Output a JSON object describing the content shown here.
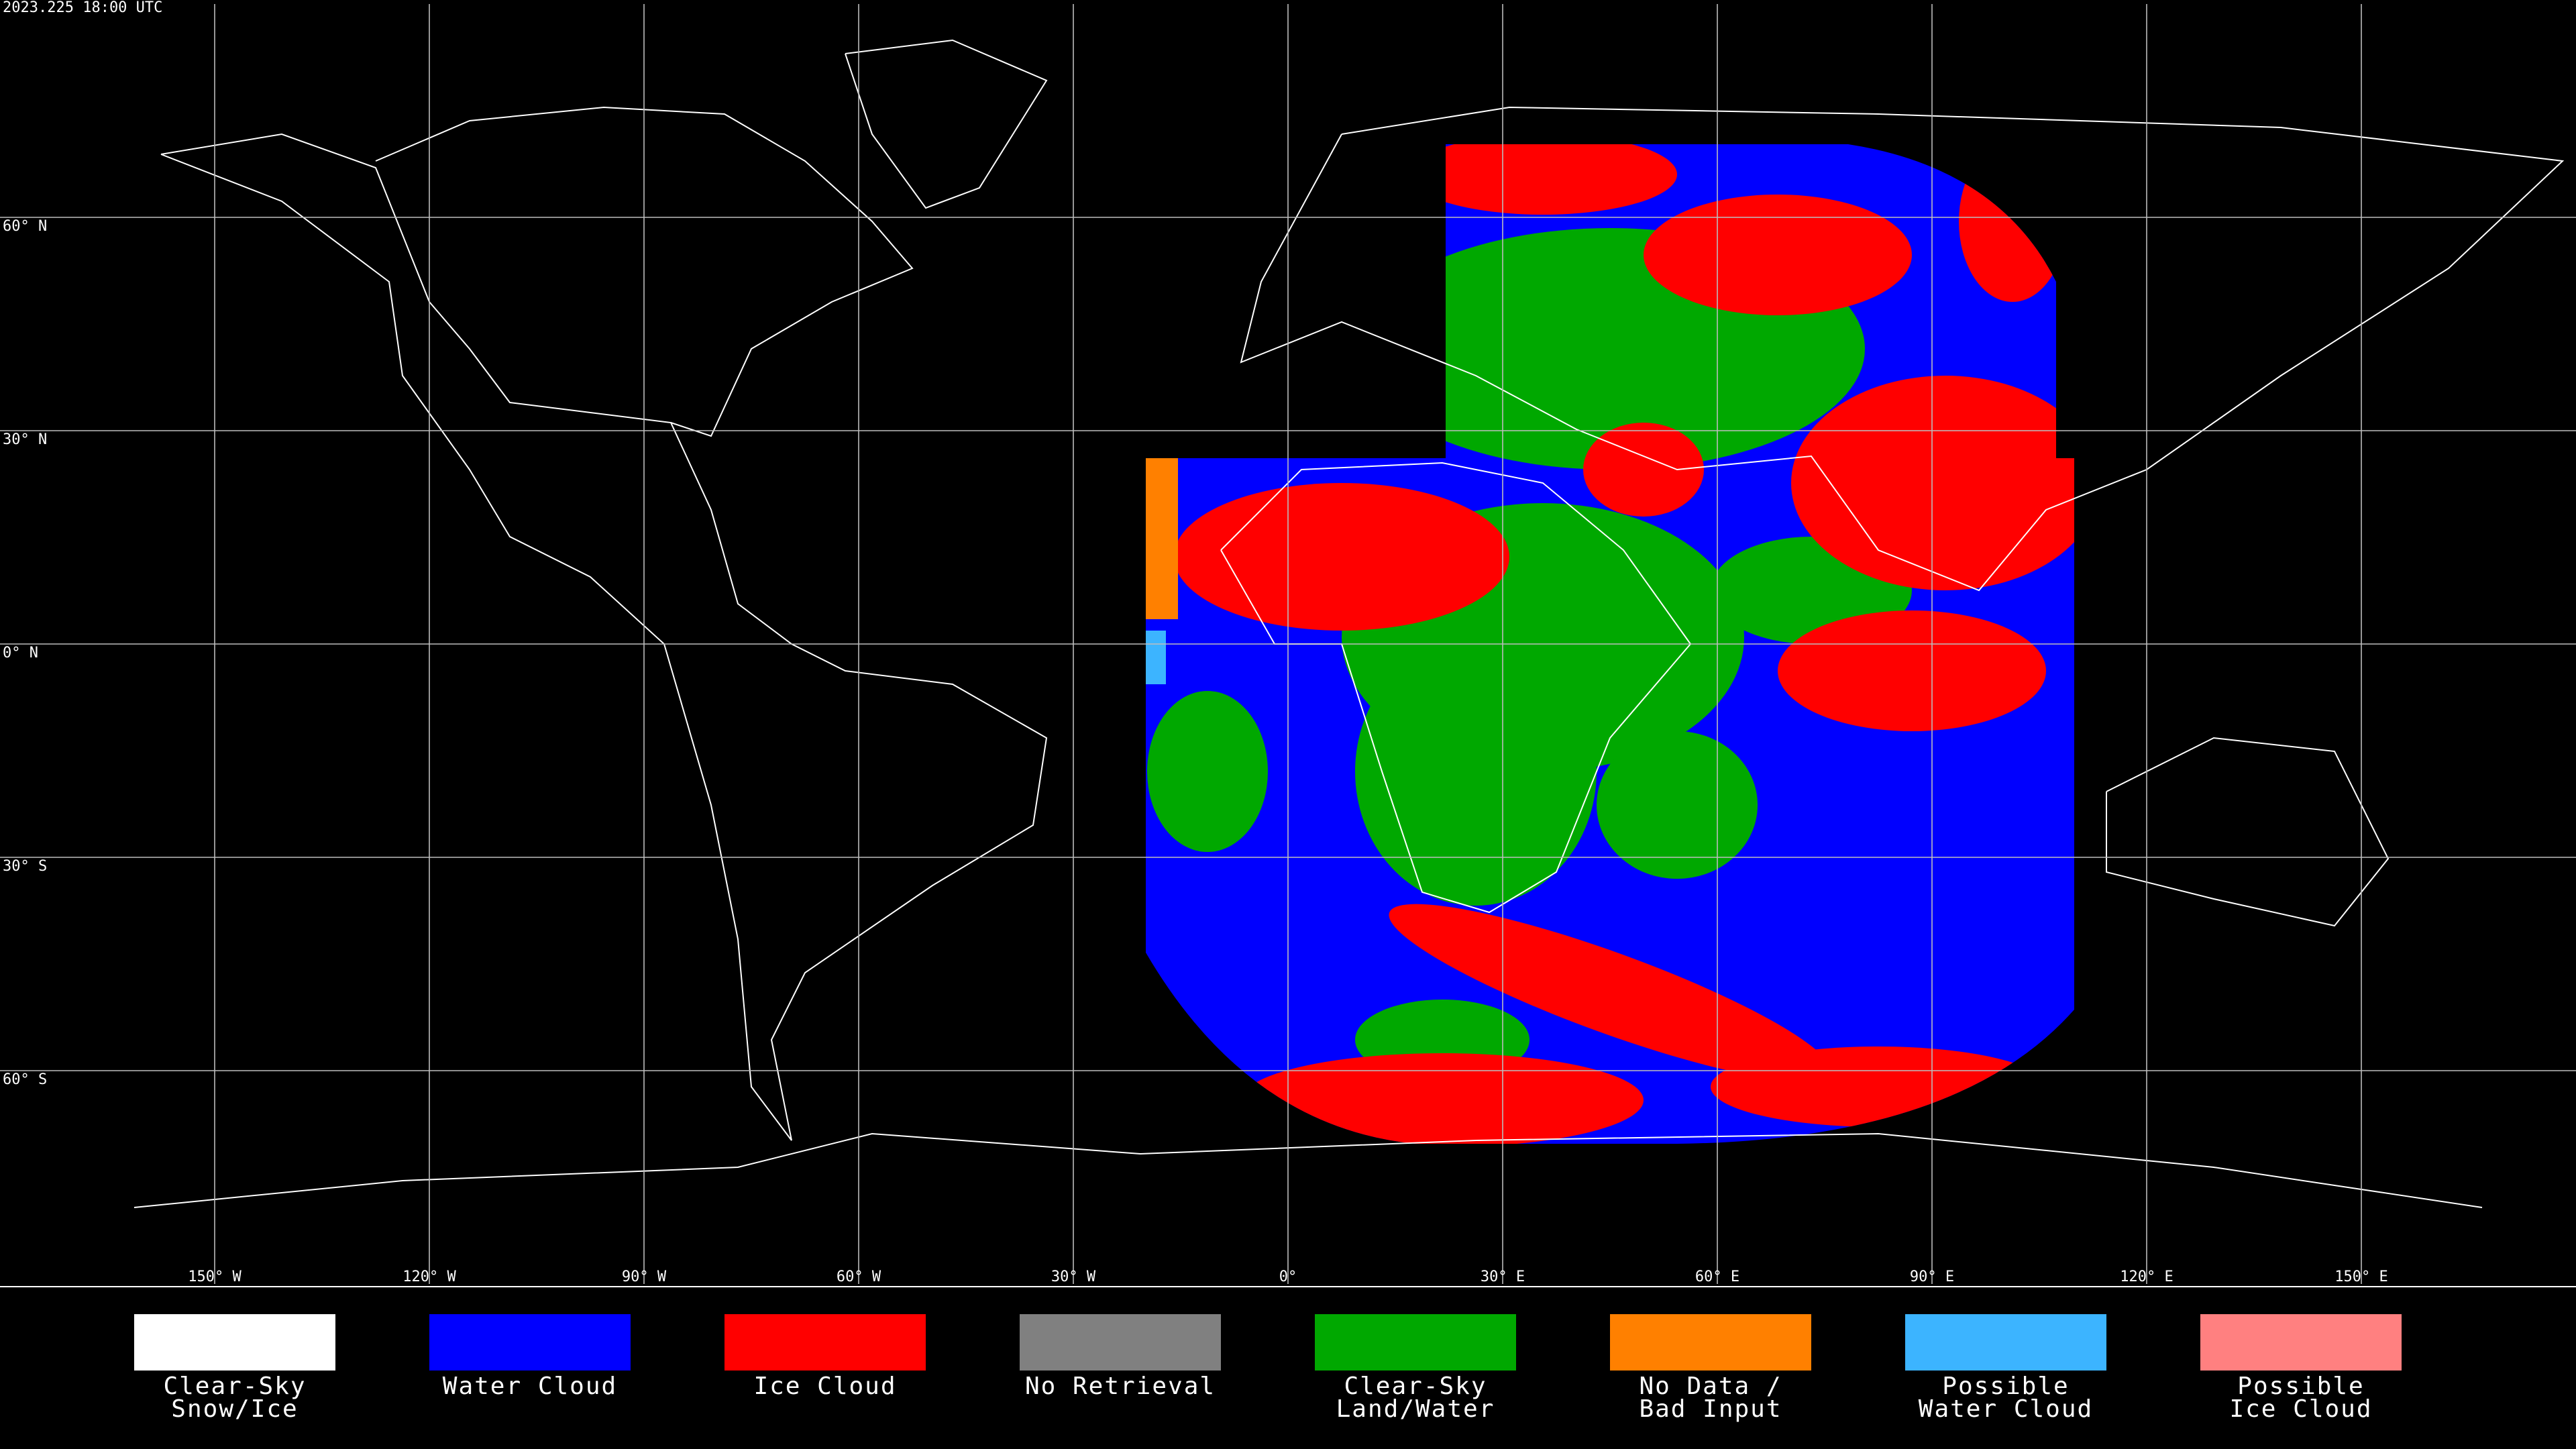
{
  "header": {
    "timestamp": "2023.225 18:00 UTC"
  },
  "map": {
    "lat_lines": [
      {
        "value": 60,
        "label": "60° N"
      },
      {
        "value": 30,
        "label": "30° N"
      },
      {
        "value": 0,
        "label": "0° N"
      },
      {
        "value": -30,
        "label": "30° S"
      },
      {
        "value": -60,
        "label": "60° S"
      }
    ],
    "lon_lines": [
      {
        "value": -150,
        "label": "150° W"
      },
      {
        "value": -120,
        "label": "120° W"
      },
      {
        "value": -90,
        "label": "90° W"
      },
      {
        "value": -60,
        "label": "60° W"
      },
      {
        "value": -30,
        "label": "30° W"
      },
      {
        "value": 0,
        "label": "0°"
      },
      {
        "value": 30,
        "label": "30° E"
      },
      {
        "value": 60,
        "label": "60° E"
      },
      {
        "value": 90,
        "label": "90° E"
      },
      {
        "value": 120,
        "label": "120° E"
      },
      {
        "value": 150,
        "label": "150° E"
      }
    ]
  },
  "legend": [
    {
      "label": [
        "Clear-Sky",
        "Snow/Ice"
      ],
      "color": "#ffffff"
    },
    {
      "label": [
        "Water Cloud"
      ],
      "color": "#0000ff"
    },
    {
      "label": [
        "Ice Cloud"
      ],
      "color": "#ff0000"
    },
    {
      "label": [
        "No Retrieval"
      ],
      "color": "#808080"
    },
    {
      "label": [
        "Clear-Sky",
        "Land/Water"
      ],
      "color": "#00a800"
    },
    {
      "label": [
        "No Data /",
        "Bad Input"
      ],
      "color": "#ff8000"
    },
    {
      "label": [
        "Possible",
        "Water Cloud"
      ],
      "color": "#3cb4ff"
    },
    {
      "label": [
        "Possible",
        "Ice Cloud"
      ],
      "color": "#ff8080"
    }
  ]
}
